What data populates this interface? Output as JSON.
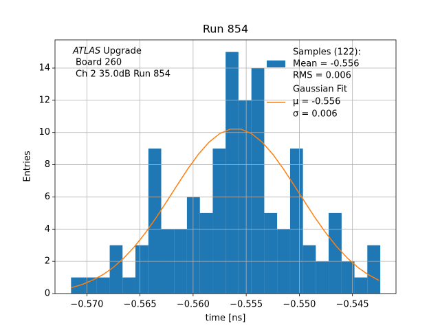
{
  "chart_data": {
    "type": "histogram",
    "title": "Run 854",
    "xlabel": "time [ns]",
    "ylabel": "Entries",
    "annotation": [
      "ATLAS",
      "Upgrade",
      "Board 260",
      "Ch 2 35.0dB  Run 854"
    ],
    "bins": [
      -0.57149,
      -0.57028,
      -0.56906,
      -0.56785,
      -0.56664,
      -0.56543,
      -0.56421,
      -0.563,
      -0.56179,
      -0.56058,
      -0.55936,
      -0.55815,
      -0.55694,
      -0.55573,
      -0.55451,
      -0.5533,
      -0.55209,
      -0.55087,
      -0.54966,
      -0.54845,
      -0.54724,
      -0.54602,
      -0.54481,
      -0.5436,
      -0.54238
    ],
    "series": [
      {
        "name": [
          "Samples (122):",
          "Mean = -0.556",
          "RMS = 0.006"
        ],
        "color": "#1f77b4",
        "values": [
          1,
          1,
          1,
          3,
          1,
          3,
          9,
          4,
          4,
          6,
          5,
          9,
          15,
          12,
          14,
          5,
          4,
          9,
          3,
          2,
          5,
          2,
          1,
          3
        ]
      },
      {
        "type": "line",
        "name": [
          "Gaussian Fit",
          "μ = -0.556",
          "σ = 0.006"
        ],
        "color": "#ff7f0e",
        "x": [
          -0.5715,
          -0.5705,
          -0.5695,
          -0.5685,
          -0.5675,
          -0.5665,
          -0.5655,
          -0.5645,
          -0.5635,
          -0.5625,
          -0.5615,
          -0.5605,
          -0.5595,
          -0.5585,
          -0.5575,
          -0.5565,
          -0.5555,
          -0.5545,
          -0.5535,
          -0.5525,
          -0.5515,
          -0.5505,
          -0.5495,
          -0.5485,
          -0.5475,
          -0.5465,
          -0.5455,
          -0.5445,
          -0.5435,
          -0.5425
        ],
        "values": [
          0.36,
          0.55,
          0.82,
          1.17,
          1.63,
          2.22,
          2.93,
          3.76,
          4.69,
          5.7,
          6.73,
          7.74,
          8.65,
          9.4,
          9.93,
          10.21,
          10.21,
          9.93,
          9.4,
          8.65,
          7.74,
          6.73,
          5.7,
          4.69,
          3.76,
          2.93,
          2.22,
          1.63,
          1.17,
          0.82
        ]
      }
    ],
    "xlim": [
      -0.573,
      -0.5409
    ],
    "ylim": [
      0,
      15.75
    ],
    "xticks": [
      {
        "value": -0.57,
        "label": "−0.570"
      },
      {
        "value": -0.565,
        "label": "−0.565"
      },
      {
        "value": -0.56,
        "label": "−0.560"
      },
      {
        "value": -0.555,
        "label": "−0.555"
      },
      {
        "value": -0.55,
        "label": "−0.550"
      },
      {
        "value": -0.545,
        "label": "−0.545"
      }
    ],
    "yticks": [
      0,
      2,
      4,
      6,
      8,
      10,
      12,
      14
    ],
    "grid": true,
    "legend": "upper right"
  }
}
